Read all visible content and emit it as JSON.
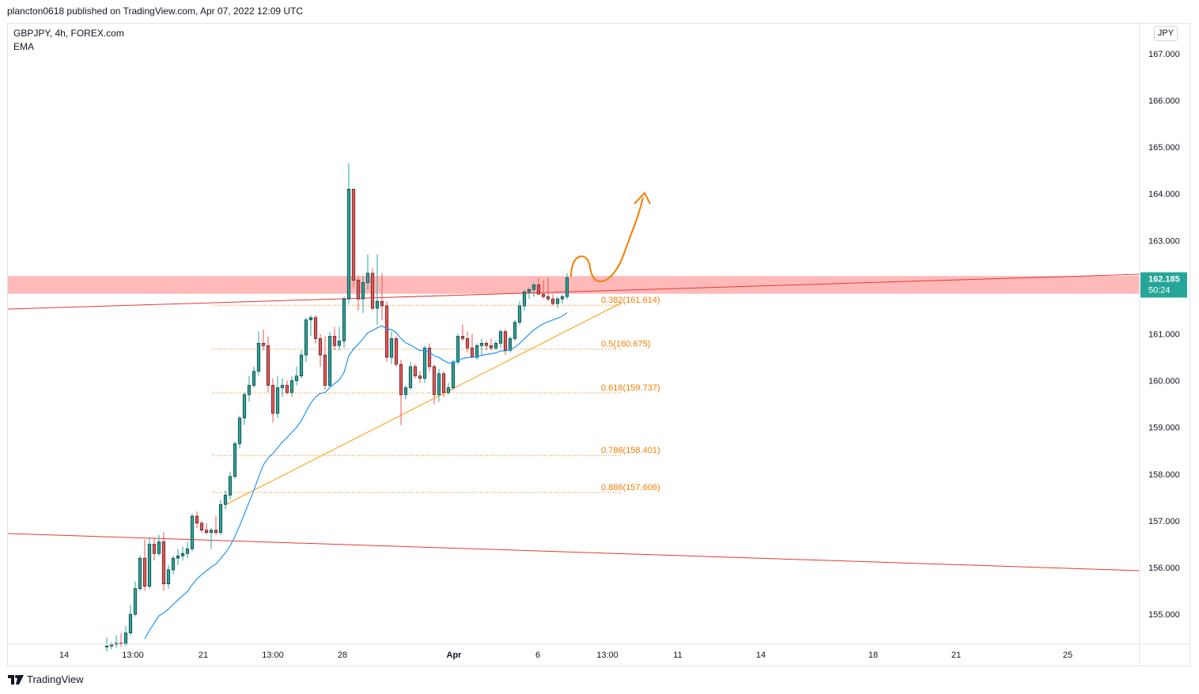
{
  "header": {
    "published": "plancton0618 published on TradingView.com, Apr 07, 2022 12:09 UTC"
  },
  "legend": {
    "symbol": "GBPJPY, 4h, FOREX.com",
    "indicator": "EMA"
  },
  "currency": "JPY",
  "footer": {
    "brand": "TradingView"
  },
  "colors": {
    "up": "#26a69a",
    "down": "#ef5350",
    "ema": "#2196f3",
    "fib": "#f57c00",
    "trend": "#ff9800",
    "resistance": "#e53935",
    "zone": "#ff9e9e",
    "price_badge": "#26a69a"
  },
  "chart_data": {
    "type": "candlestick",
    "y_axis": {
      "ticks": [
        155,
        156,
        157,
        158,
        159,
        160,
        161,
        162,
        163,
        164,
        165,
        166,
        167
      ],
      "tick_labels": [
        "155.000",
        "156.000",
        "157.000",
        "158.000",
        "159.000",
        "160.000",
        "161.000",
        "162.000",
        "163.000",
        "164.000",
        "165.000",
        "166.000",
        "167.000"
      ],
      "range": [
        154.25,
        167.95
      ]
    },
    "x_axis": {
      "labels": [
        "14",
        "13:00",
        "21",
        "13:00",
        "28",
        "Apr",
        "6",
        "13:00",
        "11",
        "14",
        "18",
        "21",
        "25"
      ],
      "bold": [
        false,
        false,
        false,
        false,
        false,
        true,
        false,
        false,
        false,
        false,
        false,
        false,
        false
      ]
    },
    "last_price": {
      "value": 162.185,
      "label": "162.185",
      "countdown": "50:24"
    },
    "resistance_zone": [
      161.86,
      162.24
    ],
    "fib_levels": [
      {
        "ratio": "0.382",
        "value": 161.614,
        "label": "0.382(161.614)"
      },
      {
        "ratio": "0.5",
        "value": 160.675,
        "label": "0.5(160.675)"
      },
      {
        "ratio": "0.618",
        "value": 159.737,
        "label": "0.618(159.737)"
      },
      {
        "ratio": "0.786",
        "value": 158.401,
        "label": "0.786(158.401)"
      },
      {
        "ratio": "0.886",
        "value": 157.606,
        "label": "0.886(157.606)"
      }
    ],
    "candles": [
      {
        "o": 154.3,
        "h": 154.5,
        "l": 154.2,
        "c": 154.32
      },
      {
        "o": 154.32,
        "h": 154.4,
        "l": 154.25,
        "c": 154.35
      },
      {
        "o": 154.35,
        "h": 154.55,
        "l": 154.28,
        "c": 154.38
      },
      {
        "o": 154.38,
        "h": 154.6,
        "l": 154.3,
        "c": 154.36
      },
      {
        "o": 154.36,
        "h": 154.75,
        "l": 154.32,
        "c": 154.6
      },
      {
        "o": 154.6,
        "h": 155.2,
        "l": 154.55,
        "c": 155.0
      },
      {
        "o": 155.0,
        "h": 155.7,
        "l": 154.95,
        "c": 155.55
      },
      {
        "o": 155.55,
        "h": 156.25,
        "l": 155.5,
        "c": 156.2
      },
      {
        "o": 156.2,
        "h": 156.6,
        "l": 155.5,
        "c": 155.6
      },
      {
        "o": 155.6,
        "h": 156.65,
        "l": 155.55,
        "c": 156.5
      },
      {
        "o": 156.5,
        "h": 156.65,
        "l": 156.15,
        "c": 156.3
      },
      {
        "o": 156.3,
        "h": 156.7,
        "l": 156.25,
        "c": 156.55
      },
      {
        "o": 156.55,
        "h": 156.75,
        "l": 155.5,
        "c": 155.65
      },
      {
        "o": 155.65,
        "h": 156.05,
        "l": 155.55,
        "c": 155.95
      },
      {
        "o": 155.95,
        "h": 156.25,
        "l": 155.85,
        "c": 156.2
      },
      {
        "o": 156.2,
        "h": 156.4,
        "l": 156.05,
        "c": 156.25
      },
      {
        "o": 156.25,
        "h": 156.45,
        "l": 156.15,
        "c": 156.3
      },
      {
        "o": 156.3,
        "h": 156.55,
        "l": 156.2,
        "c": 156.4
      },
      {
        "o": 156.4,
        "h": 157.15,
        "l": 156.35,
        "c": 157.1
      },
      {
        "o": 157.1,
        "h": 157.2,
        "l": 156.85,
        "c": 156.95
      },
      {
        "o": 156.95,
        "h": 157.0,
        "l": 156.75,
        "c": 156.8
      },
      {
        "o": 156.8,
        "h": 156.95,
        "l": 156.7,
        "c": 156.75
      },
      {
        "o": 156.75,
        "h": 156.85,
        "l": 156.4,
        "c": 156.8
      },
      {
        "o": 156.8,
        "h": 157.1,
        "l": 156.7,
        "c": 156.75
      },
      {
        "o": 156.75,
        "h": 157.45,
        "l": 156.7,
        "c": 157.35
      },
      {
        "o": 157.35,
        "h": 157.65,
        "l": 157.25,
        "c": 157.55
      },
      {
        "o": 157.55,
        "h": 158.05,
        "l": 157.45,
        "c": 157.95
      },
      {
        "o": 157.95,
        "h": 158.7,
        "l": 157.9,
        "c": 158.65
      },
      {
        "o": 158.65,
        "h": 159.25,
        "l": 158.55,
        "c": 159.2
      },
      {
        "o": 159.2,
        "h": 159.75,
        "l": 159.05,
        "c": 159.7
      },
      {
        "o": 159.7,
        "h": 160.1,
        "l": 159.55,
        "c": 159.9
      },
      {
        "o": 159.9,
        "h": 160.3,
        "l": 159.85,
        "c": 160.2
      },
      {
        "o": 160.2,
        "h": 161.05,
        "l": 160.1,
        "c": 160.8
      },
      {
        "o": 160.8,
        "h": 161.1,
        "l": 160.65,
        "c": 160.75
      },
      {
        "o": 160.75,
        "h": 160.95,
        "l": 159.75,
        "c": 159.9
      },
      {
        "o": 159.9,
        "h": 160.05,
        "l": 159.1,
        "c": 159.3
      },
      {
        "o": 159.3,
        "h": 160.1,
        "l": 159.2,
        "c": 159.85
      },
      {
        "o": 159.85,
        "h": 160.05,
        "l": 159.65,
        "c": 159.9
      },
      {
        "o": 159.9,
        "h": 160.0,
        "l": 159.7,
        "c": 159.75
      },
      {
        "o": 159.75,
        "h": 160.1,
        "l": 159.65,
        "c": 160.0
      },
      {
        "o": 160.0,
        "h": 160.3,
        "l": 159.9,
        "c": 160.1
      },
      {
        "o": 160.1,
        "h": 160.65,
        "l": 160.05,
        "c": 160.55
      },
      {
        "o": 160.55,
        "h": 161.35,
        "l": 160.4,
        "c": 161.3
      },
      {
        "o": 161.3,
        "h": 161.4,
        "l": 160.95,
        "c": 161.35
      },
      {
        "o": 161.35,
        "h": 161.4,
        "l": 160.8,
        "c": 160.9
      },
      {
        "o": 160.9,
        "h": 161.0,
        "l": 160.3,
        "c": 160.55
      },
      {
        "o": 160.55,
        "h": 160.95,
        "l": 159.8,
        "c": 159.9
      },
      {
        "o": 159.9,
        "h": 161.05,
        "l": 159.85,
        "c": 160.95
      },
      {
        "o": 160.95,
        "h": 161.15,
        "l": 160.65,
        "c": 160.75
      },
      {
        "o": 160.75,
        "h": 161.15,
        "l": 160.65,
        "c": 160.85
      },
      {
        "o": 160.85,
        "h": 161.8,
        "l": 160.7,
        "c": 161.75
      },
      {
        "o": 161.75,
        "h": 164.65,
        "l": 161.65,
        "c": 164.1
      },
      {
        "o": 164.1,
        "h": 164.1,
        "l": 162.0,
        "c": 162.15
      },
      {
        "o": 162.15,
        "h": 162.25,
        "l": 161.5,
        "c": 161.75
      },
      {
        "o": 161.75,
        "h": 162.25,
        "l": 161.45,
        "c": 162.1
      },
      {
        "o": 162.1,
        "h": 162.7,
        "l": 161.95,
        "c": 162.3
      },
      {
        "o": 162.3,
        "h": 162.4,
        "l": 161.5,
        "c": 161.55
      },
      {
        "o": 161.55,
        "h": 162.7,
        "l": 161.2,
        "c": 161.7
      },
      {
        "o": 161.7,
        "h": 162.3,
        "l": 161.3,
        "c": 161.6
      },
      {
        "o": 161.6,
        "h": 161.7,
        "l": 160.4,
        "c": 160.5
      },
      {
        "o": 160.5,
        "h": 161.05,
        "l": 160.35,
        "c": 160.9
      },
      {
        "o": 160.9,
        "h": 160.95,
        "l": 160.3,
        "c": 160.35
      },
      {
        "o": 160.35,
        "h": 160.45,
        "l": 159.05,
        "c": 159.7
      },
      {
        "o": 159.7,
        "h": 159.9,
        "l": 159.6,
        "c": 159.85
      },
      {
        "o": 159.85,
        "h": 160.4,
        "l": 159.8,
        "c": 160.3
      },
      {
        "o": 160.3,
        "h": 160.35,
        "l": 160.05,
        "c": 160.1
      },
      {
        "o": 160.1,
        "h": 160.2,
        "l": 159.95,
        "c": 160.05
      },
      {
        "o": 160.05,
        "h": 160.75,
        "l": 159.95,
        "c": 160.7
      },
      {
        "o": 160.7,
        "h": 160.8,
        "l": 160.2,
        "c": 160.3
      },
      {
        "o": 160.3,
        "h": 160.35,
        "l": 159.5,
        "c": 159.7
      },
      {
        "o": 159.7,
        "h": 160.25,
        "l": 159.55,
        "c": 160.15
      },
      {
        "o": 160.15,
        "h": 160.2,
        "l": 159.65,
        "c": 159.75
      },
      {
        "o": 159.75,
        "h": 159.95,
        "l": 159.7,
        "c": 159.85
      },
      {
        "o": 159.85,
        "h": 160.45,
        "l": 159.8,
        "c": 160.4
      },
      {
        "o": 160.4,
        "h": 161.0,
        "l": 160.35,
        "c": 160.95
      },
      {
        "o": 160.95,
        "h": 161.2,
        "l": 160.85,
        "c": 160.9
      },
      {
        "o": 160.9,
        "h": 161.05,
        "l": 160.6,
        "c": 160.7
      },
      {
        "o": 160.7,
        "h": 161.0,
        "l": 160.5,
        "c": 160.5
      },
      {
        "o": 160.5,
        "h": 160.8,
        "l": 160.45,
        "c": 160.75
      },
      {
        "o": 160.75,
        "h": 160.9,
        "l": 160.55,
        "c": 160.8
      },
      {
        "o": 160.8,
        "h": 160.85,
        "l": 160.65,
        "c": 160.75
      },
      {
        "o": 160.75,
        "h": 160.9,
        "l": 160.65,
        "c": 160.7
      },
      {
        "o": 160.7,
        "h": 160.85,
        "l": 160.65,
        "c": 160.8
      },
      {
        "o": 160.8,
        "h": 161.1,
        "l": 160.7,
        "c": 161.05
      },
      {
        "o": 161.05,
        "h": 161.1,
        "l": 160.55,
        "c": 160.65
      },
      {
        "o": 160.65,
        "h": 160.95,
        "l": 160.6,
        "c": 160.9
      },
      {
        "o": 160.9,
        "h": 161.3,
        "l": 160.85,
        "c": 161.25
      },
      {
        "o": 161.25,
        "h": 161.7,
        "l": 161.2,
        "c": 161.6
      },
      {
        "o": 161.6,
        "h": 161.95,
        "l": 161.5,
        "c": 161.9
      },
      {
        "o": 161.9,
        "h": 162.0,
        "l": 161.75,
        "c": 161.95
      },
      {
        "o": 161.95,
        "h": 162.1,
        "l": 161.8,
        "c": 162.05
      },
      {
        "o": 162.05,
        "h": 162.2,
        "l": 161.85,
        "c": 161.85
      },
      {
        "o": 161.85,
        "h": 162.15,
        "l": 161.75,
        "c": 161.8
      },
      {
        "o": 161.8,
        "h": 162.2,
        "l": 161.7,
        "c": 161.75
      },
      {
        "o": 161.75,
        "h": 161.85,
        "l": 161.6,
        "c": 161.65
      },
      {
        "o": 161.65,
        "h": 161.8,
        "l": 161.55,
        "c": 161.75
      },
      {
        "o": 161.75,
        "h": 161.85,
        "l": 161.65,
        "c": 161.8
      },
      {
        "o": 161.8,
        "h": 162.3,
        "l": 161.75,
        "c": 162.2
      }
    ]
  }
}
